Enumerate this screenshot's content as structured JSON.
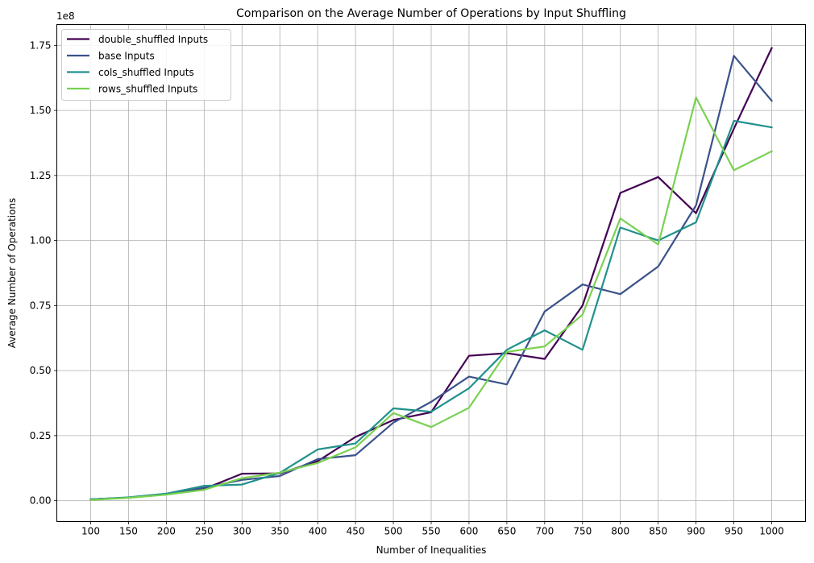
{
  "chart_data": {
    "type": "line",
    "title": "Comparison on the Average Number of Operations by Input Shuffling",
    "xlabel": "Number of Inequalities",
    "ylabel": "Average Number of Operations",
    "y_offset_label": "1e8",
    "y_multiplier": 100000000,
    "x": [
      100,
      150,
      200,
      250,
      300,
      350,
      400,
      450,
      500,
      550,
      600,
      650,
      700,
      750,
      800,
      850,
      900,
      950,
      1000
    ],
    "x_ticks": [
      "100",
      "150",
      "200",
      "250",
      "300",
      "350",
      "400",
      "450",
      "500",
      "550",
      "600",
      "650",
      "700",
      "750",
      "800",
      "850",
      "900",
      "950",
      "1000"
    ],
    "y_ticks": [
      "0.00",
      "0.25",
      "0.50",
      "0.75",
      "1.00",
      "1.25",
      "1.50",
      "1.75"
    ],
    "y_tick_values": [
      0,
      0.25,
      0.5,
      0.75,
      1.0,
      1.25,
      1.5,
      1.75
    ],
    "ylim": [
      -0.08,
      1.83
    ],
    "grid": true,
    "legend_position": "top-left",
    "series": [
      {
        "name": "double_shuffled Inputs",
        "color": "#440154",
        "values": [
          0.005,
          0.012,
          0.025,
          0.045,
          0.104,
          0.105,
          0.152,
          0.245,
          0.31,
          0.34,
          0.557,
          0.567,
          0.545,
          0.75,
          1.183,
          1.244,
          1.105,
          1.43,
          1.74
        ]
      },
      {
        "name": "base Inputs",
        "color": "#3b528b",
        "values": [
          0.005,
          0.012,
          0.025,
          0.05,
          0.08,
          0.095,
          0.16,
          0.175,
          0.3,
          0.38,
          0.477,
          0.447,
          0.727,
          0.831,
          0.794,
          0.9,
          1.135,
          1.71,
          1.537
        ]
      },
      {
        "name": "cols_shuffled Inputs",
        "color": "#21918c",
        "values": [
          0.005,
          0.013,
          0.027,
          0.057,
          0.062,
          0.107,
          0.197,
          0.22,
          0.355,
          0.342,
          0.432,
          0.58,
          0.655,
          0.58,
          1.05,
          1.0,
          1.07,
          1.46,
          1.435
        ]
      },
      {
        "name": "rows_shuffled Inputs",
        "color": "#7ad151",
        "values": [
          0.003,
          0.011,
          0.023,
          0.042,
          0.087,
          0.108,
          0.145,
          0.205,
          0.337,
          0.283,
          0.357,
          0.572,
          0.593,
          0.715,
          1.085,
          0.985,
          1.55,
          1.27,
          1.343
        ]
      }
    ]
  }
}
